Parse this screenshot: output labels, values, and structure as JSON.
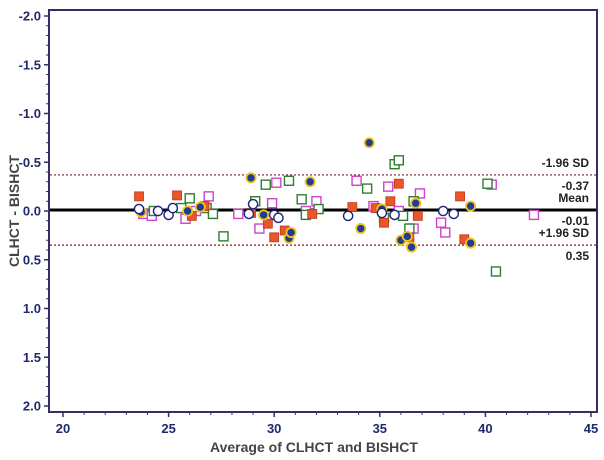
{
  "chart_data": {
    "type": "scatter",
    "title": "",
    "xlabel": "Average of CLHCT and BISHCT",
    "ylabel": "CLHCT - BISHCT",
    "xlim": [
      20,
      45
    ],
    "ylim": [
      -2.1,
      2.1
    ],
    "xticks": [
      "20",
      "25",
      "30",
      "35",
      "40",
      "45"
    ],
    "yticks": [
      "2.0",
      "1.5",
      "1.0",
      "0.5",
      "0.0",
      "-0.5",
      "-1.0",
      "-1.5",
      "-2.0"
    ],
    "grid": false,
    "lines": [
      {
        "kind": "upper",
        "value": 0.35,
        "label": "+1.96 SD",
        "value_label": "0.35",
        "style": "dotted",
        "color": "#8b1a1a"
      },
      {
        "kind": "mean",
        "value": -0.01,
        "label": "Mean",
        "value_label": "-0.01",
        "style": "solid",
        "color": "#000000"
      },
      {
        "kind": "lower",
        "value": -0.37,
        "label": "-1.96 SD",
        "value_label": "-0.37",
        "style": "dotted",
        "color": "#8b1a1a"
      }
    ],
    "series": [
      {
        "marker": "square-open",
        "color": "#cc44cc",
        "points": [
          [
            23.8,
            0.03
          ],
          [
            24.2,
            0.05
          ],
          [
            25.8,
            0.08
          ],
          [
            26.3,
            0.0
          ],
          [
            26.9,
            -0.15
          ],
          [
            28.3,
            0.03
          ],
          [
            29.3,
            0.18
          ],
          [
            29.9,
            -0.08
          ],
          [
            30.1,
            -0.29
          ],
          [
            31.5,
            0.0
          ],
          [
            32.0,
            -0.1
          ],
          [
            33.9,
            -0.31
          ],
          [
            34.7,
            -0.05
          ],
          [
            35.4,
            -0.25
          ],
          [
            35.9,
            0.0
          ],
          [
            36.6,
            0.18
          ],
          [
            36.9,
            -0.18
          ],
          [
            37.9,
            0.12
          ],
          [
            38.1,
            0.22
          ],
          [
            40.3,
            -0.27
          ],
          [
            42.3,
            0.04
          ]
        ]
      },
      {
        "marker": "square-open",
        "color": "#2e7d32",
        "points": [
          [
            24.3,
            0.0
          ],
          [
            25.6,
            -0.03
          ],
          [
            26.0,
            -0.13
          ],
          [
            26.8,
            -0.03
          ],
          [
            27.1,
            0.03
          ],
          [
            27.6,
            0.26
          ],
          [
            29.1,
            -0.1
          ],
          [
            29.6,
            -0.27
          ],
          [
            30.7,
            -0.31
          ],
          [
            31.3,
            -0.12
          ],
          [
            31.5,
            0.04
          ],
          [
            32.1,
            -0.02
          ],
          [
            34.4,
            -0.23
          ],
          [
            35.2,
            0.07
          ],
          [
            35.7,
            -0.48
          ],
          [
            35.9,
            -0.52
          ],
          [
            36.1,
            0.05
          ],
          [
            36.4,
            0.18
          ],
          [
            36.6,
            -0.1
          ],
          [
            40.1,
            -0.28
          ],
          [
            40.5,
            0.62
          ]
        ]
      },
      {
        "marker": "square-filled",
        "color": "#e8562a",
        "points": [
          [
            23.6,
            -0.15
          ],
          [
            25.4,
            -0.16
          ],
          [
            26.1,
            0.05
          ],
          [
            26.7,
            -0.05
          ],
          [
            28.9,
            0.02
          ],
          [
            29.7,
            0.13
          ],
          [
            30.0,
            0.27
          ],
          [
            30.5,
            0.2
          ],
          [
            31.8,
            0.03
          ],
          [
            33.7,
            -0.04
          ],
          [
            34.8,
            -0.03
          ],
          [
            35.2,
            0.12
          ],
          [
            35.5,
            -0.1
          ],
          [
            35.9,
            -0.28
          ],
          [
            36.4,
            0.27
          ],
          [
            36.8,
            0.05
          ],
          [
            38.8,
            -0.15
          ],
          [
            39.0,
            0.29
          ]
        ]
      },
      {
        "marker": "circle-filled",
        "color": "#1f3c99",
        "points": [
          [
            23.7,
            0.01
          ],
          [
            25.9,
            0.0
          ],
          [
            26.5,
            -0.04
          ],
          [
            28.9,
            -0.34
          ],
          [
            29.5,
            0.04
          ],
          [
            30.7,
            0.28
          ],
          [
            30.8,
            0.22
          ],
          [
            31.7,
            -0.3
          ],
          [
            34.1,
            0.18
          ],
          [
            34.5,
            -0.7
          ],
          [
            35.1,
            -0.02
          ],
          [
            36.0,
            0.3
          ],
          [
            36.3,
            0.26
          ],
          [
            36.5,
            0.37
          ],
          [
            36.7,
            -0.08
          ],
          [
            39.3,
            0.33
          ],
          [
            39.3,
            -0.05
          ]
        ]
      },
      {
        "marker": "circle-open",
        "color": "#1a237e",
        "points": [
          [
            23.6,
            -0.02
          ],
          [
            24.5,
            0.0
          ],
          [
            25.0,
            0.04
          ],
          [
            25.2,
            -0.03
          ],
          [
            28.8,
            0.03
          ],
          [
            29.0,
            -0.07
          ],
          [
            30.0,
            0.04
          ],
          [
            30.2,
            0.07
          ],
          [
            33.5,
            0.05
          ],
          [
            35.1,
            0.02
          ],
          [
            35.7,
            0.04
          ],
          [
            38.0,
            0.0
          ],
          [
            38.5,
            0.03
          ]
        ]
      }
    ]
  }
}
